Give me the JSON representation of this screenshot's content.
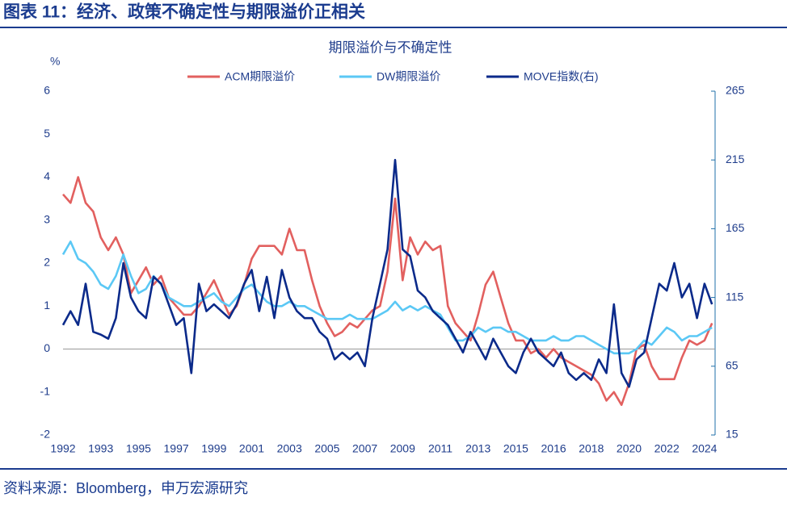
{
  "header": {
    "title": "图表 11：经济、政策不确定性与期限溢价正相关"
  },
  "source": "资料来源：Bloomberg，申万宏源研究",
  "chart_data": {
    "type": "line",
    "title": "期限溢价与不确定性",
    "y_label": "%",
    "categories": [
      "1992",
      null,
      null,
      null,
      null,
      "1993",
      null,
      null,
      null,
      null,
      "1995",
      null,
      null,
      null,
      null,
      "1997",
      null,
      null,
      null,
      null,
      "1999",
      null,
      null,
      null,
      null,
      "2001",
      null,
      null,
      null,
      null,
      "2003",
      null,
      null,
      null,
      null,
      "2005",
      null,
      null,
      null,
      null,
      "2007",
      null,
      null,
      null,
      null,
      "2009",
      null,
      null,
      null,
      null,
      "2011",
      null,
      null,
      null,
      null,
      "2013",
      null,
      null,
      null,
      null,
      "2015",
      null,
      null,
      null,
      null,
      "2016",
      null,
      null,
      null,
      null,
      "2018",
      null,
      null,
      null,
      null,
      "2020",
      null,
      null,
      null,
      null,
      "2022",
      null,
      null,
      null,
      null,
      "2024",
      null
    ],
    "series": [
      {
        "name": "ACM期限溢价",
        "color": "#e2605f",
        "axis": "y",
        "values": [
          3.6,
          3.4,
          4.0,
          3.4,
          3.2,
          2.6,
          2.3,
          2.6,
          2.2,
          1.3,
          1.6,
          1.9,
          1.5,
          1.7,
          1.2,
          1.0,
          0.8,
          0.8,
          1.0,
          1.3,
          1.6,
          1.2,
          0.8,
          1.0,
          1.5,
          2.1,
          2.4,
          2.4,
          2.4,
          2.2,
          2.8,
          2.3,
          2.3,
          1.6,
          1.0,
          0.6,
          0.3,
          0.4,
          0.6,
          0.5,
          0.7,
          0.9,
          1.0,
          1.8,
          3.5,
          1.6,
          2.6,
          2.2,
          2.5,
          2.3,
          2.4,
          1.0,
          0.6,
          0.4,
          0.2,
          0.8,
          1.5,
          1.8,
          1.2,
          0.6,
          0.2,
          0.2,
          -0.1,
          0.0,
          -0.2,
          0.0,
          -0.2,
          -0.3,
          -0.4,
          -0.5,
          -0.6,
          -0.8,
          -1.2,
          -1.0,
          -1.3,
          -0.8,
          0.0,
          0.1,
          -0.4,
          -0.7,
          -0.7,
          -0.7,
          -0.2,
          0.2,
          0.1,
          0.2,
          0.6
        ]
      },
      {
        "name": "DW期限溢价",
        "color": "#5bc8f5",
        "axis": "y",
        "values": [
          2.2,
          2.5,
          2.1,
          2.0,
          1.8,
          1.5,
          1.4,
          1.7,
          2.2,
          1.7,
          1.3,
          1.4,
          1.7,
          1.5,
          1.2,
          1.1,
          1.0,
          1.0,
          1.1,
          1.2,
          1.3,
          1.1,
          1.0,
          1.2,
          1.4,
          1.5,
          1.3,
          1.1,
          1.0,
          1.0,
          1.1,
          1.0,
          1.0,
          0.9,
          0.8,
          0.7,
          0.7,
          0.7,
          0.8,
          0.7,
          0.7,
          0.7,
          0.8,
          0.9,
          1.1,
          0.9,
          1.0,
          0.9,
          1.0,
          0.9,
          0.8,
          0.5,
          0.2,
          0.2,
          0.3,
          0.5,
          0.4,
          0.5,
          0.5,
          0.4,
          0.4,
          0.3,
          0.2,
          0.2,
          0.2,
          0.3,
          0.2,
          0.2,
          0.3,
          0.3,
          0.2,
          0.1,
          0.0,
          -0.1,
          -0.1,
          -0.1,
          0.0,
          0.2,
          0.1,
          0.3,
          0.5,
          0.4,
          0.2,
          0.3,
          0.3,
          0.4,
          0.5
        ]
      },
      {
        "name": "MOVE指数(右)",
        "color": "#0b2a8a",
        "axis": "y2",
        "values": [
          95,
          105,
          95,
          125,
          90,
          88,
          85,
          100,
          140,
          115,
          105,
          100,
          130,
          125,
          110,
          95,
          100,
          60,
          125,
          105,
          110,
          105,
          100,
          110,
          125,
          135,
          105,
          130,
          100,
          135,
          115,
          105,
          100,
          100,
          90,
          85,
          70,
          75,
          70,
          75,
          65,
          100,
          125,
          150,
          215,
          150,
          145,
          120,
          115,
          105,
          100,
          95,
          85,
          75,
          90,
          80,
          70,
          85,
          75,
          65,
          60,
          75,
          85,
          75,
          70,
          65,
          75,
          60,
          55,
          60,
          55,
          70,
          60,
          110,
          60,
          50,
          70,
          75,
          100,
          125,
          120,
          140,
          115,
          125,
          100,
          125,
          110
        ]
      }
    ],
    "ylim": [
      -2,
      6
    ],
    "yticks": [
      -2,
      -1,
      0,
      1,
      2,
      3,
      4,
      5,
      6
    ],
    "y2lim": [
      15,
      265
    ],
    "y2ticks": [
      15,
      65,
      115,
      165,
      215,
      265
    ]
  }
}
